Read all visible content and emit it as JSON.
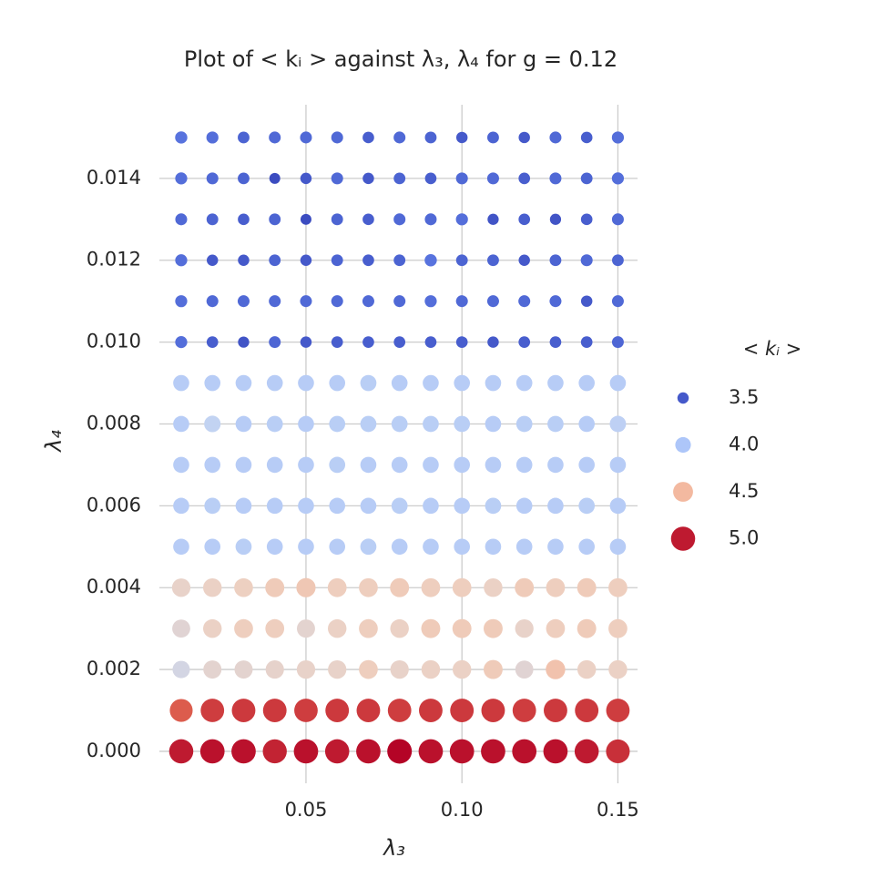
{
  "chart_data": {
    "type": "scatter",
    "title": "Plot of < kᵢ > against λ₃, λ₄ for g = 0.12",
    "x_label": "λ₃",
    "y_label": "λ₄",
    "x": [
      0.01,
      0.02,
      0.03,
      0.04,
      0.05,
      0.06,
      0.07,
      0.08,
      0.09,
      0.1,
      0.11,
      0.12,
      0.13,
      0.14,
      0.15
    ],
    "y": [
      0.0,
      0.001,
      0.002,
      0.003,
      0.004,
      0.005,
      0.006,
      0.007,
      0.008,
      0.009,
      0.01,
      0.011,
      0.012,
      0.013,
      0.014,
      0.015
    ],
    "values": [
      [
        5.0,
        5.02,
        5.02,
        4.98,
        5.02,
        5.0,
        5.02,
        5.05,
        5.02,
        5.02,
        5.02,
        5.02,
        5.02,
        5.0,
        4.95
      ],
      [
        4.85,
        4.92,
        4.93,
        4.93,
        4.92,
        4.93,
        4.93,
        4.92,
        4.93,
        4.93,
        4.93,
        4.92,
        4.93,
        4.93,
        4.92
      ],
      [
        4.2,
        4.3,
        4.3,
        4.32,
        4.33,
        4.33,
        4.38,
        4.33,
        4.35,
        4.35,
        4.4,
        4.28,
        4.45,
        4.35,
        4.35
      ],
      [
        4.28,
        4.35,
        4.38,
        4.38,
        4.3,
        4.35,
        4.38,
        4.35,
        4.4,
        4.4,
        4.4,
        4.33,
        4.38,
        4.4,
        4.38
      ],
      [
        4.33,
        4.35,
        4.37,
        4.4,
        4.42,
        4.38,
        4.38,
        4.4,
        4.38,
        4.38,
        4.35,
        4.4,
        4.38,
        4.4,
        4.38
      ],
      [
        4.05,
        4.05,
        4.06,
        4.05,
        4.05,
        4.05,
        4.06,
        4.05,
        4.05,
        4.05,
        4.05,
        4.05,
        4.05,
        4.05,
        4.05
      ],
      [
        4.05,
        4.06,
        4.05,
        4.05,
        4.05,
        4.05,
        4.05,
        4.06,
        4.05,
        4.05,
        4.06,
        4.05,
        4.05,
        4.06,
        4.05
      ],
      [
        4.05,
        4.05,
        4.05,
        4.05,
        4.05,
        4.06,
        4.05,
        4.05,
        4.05,
        4.05,
        4.05,
        4.05,
        4.05,
        4.05,
        4.05
      ],
      [
        4.05,
        4.1,
        4.05,
        4.06,
        4.05,
        4.06,
        4.06,
        4.06,
        4.06,
        4.06,
        4.05,
        4.06,
        4.06,
        4.05,
        4.08
      ],
      [
        4.05,
        4.05,
        4.05,
        4.05,
        4.05,
        4.05,
        4.06,
        4.05,
        4.05,
        4.05,
        4.05,
        4.05,
        4.05,
        4.05,
        4.05
      ],
      [
        3.58,
        3.52,
        3.48,
        3.55,
        3.5,
        3.52,
        3.52,
        3.52,
        3.52,
        3.52,
        3.5,
        3.52,
        3.52,
        3.52,
        3.55
      ],
      [
        3.58,
        3.56,
        3.56,
        3.56,
        3.56,
        3.56,
        3.56,
        3.56,
        3.58,
        3.56,
        3.56,
        3.56,
        3.56,
        3.5,
        3.56
      ],
      [
        3.58,
        3.5,
        3.5,
        3.54,
        3.5,
        3.54,
        3.52,
        3.54,
        3.6,
        3.54,
        3.54,
        3.5,
        3.54,
        3.56,
        3.54
      ],
      [
        3.56,
        3.54,
        3.52,
        3.54,
        3.45,
        3.54,
        3.52,
        3.56,
        3.56,
        3.58,
        3.48,
        3.52,
        3.48,
        3.52,
        3.56
      ],
      [
        3.58,
        3.56,
        3.54,
        3.45,
        3.5,
        3.56,
        3.5,
        3.54,
        3.52,
        3.56,
        3.56,
        3.52,
        3.56,
        3.54,
        3.58
      ],
      [
        3.6,
        3.58,
        3.54,
        3.56,
        3.56,
        3.56,
        3.52,
        3.56,
        3.54,
        3.5,
        3.54,
        3.5,
        3.56,
        3.52,
        3.58
      ]
    ],
    "xlim": [
      0.003,
      0.1563
    ],
    "ylim": [
      -0.00078,
      0.0158
    ],
    "xticks": [
      0.05,
      {
        "value": 0.1,
        "label": "0.10"
      },
      0.15
    ],
    "yticks": [
      {
        "value": 0,
        "label": "0.000"
      },
      {
        "value": 0.002,
        "label": "0.002"
      },
      {
        "value": 0.004,
        "label": "0.004"
      },
      {
        "value": 0.006,
        "label": "0.006"
      },
      {
        "value": 0.008,
        "label": "0.008"
      },
      {
        "value": 0.01,
        "label": "0.010"
      },
      {
        "value": 0.012,
        "label": "0.012"
      },
      {
        "value": 0.014,
        "label": "0.014"
      }
    ],
    "grid": true,
    "colormap": [
      "#3b4cc0",
      "#6788ee",
      "#9abbff",
      "#c9d7f0",
      "#edd1c2",
      "#f7a889",
      "#e26952",
      "#b40426"
    ],
    "legend": {
      "title": "< kᵢ >",
      "position": "right",
      "entries": [
        3.5,
        {
          "value": 4.0,
          "label": "4.0"
        },
        4.5,
        {
          "value": 5.0,
          "label": "5.0"
        }
      ]
    }
  }
}
